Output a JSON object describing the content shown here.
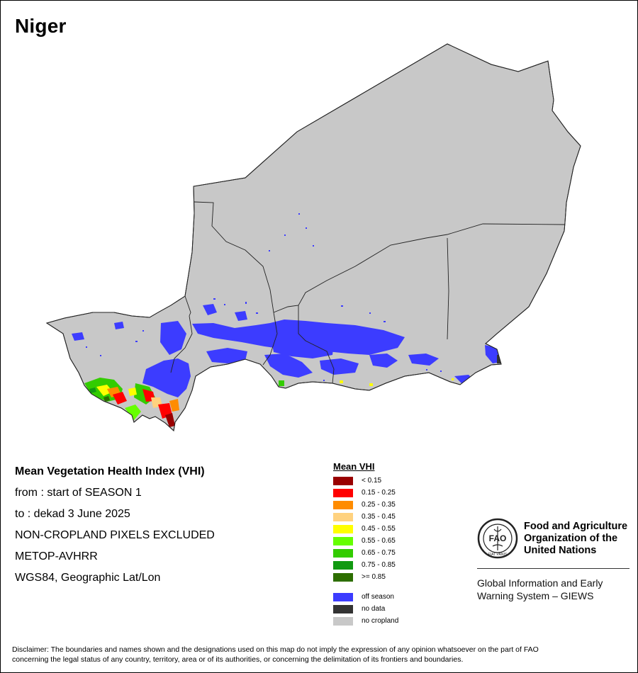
{
  "title": "Niger",
  "info": {
    "heading": "Mean Vegetation Health Index (VHI)",
    "from_line": "from    : start of SEASON 1",
    "to_line": "to       : dekad 3 June 2025",
    "exclusion": "NON-CROPLAND PIXELS EXCLUDED",
    "sensor": "METOP-AVHRR",
    "projection": "WGS84, Geographic Lat/Lon"
  },
  "legend": {
    "title": "Mean VHI",
    "classes": [
      {
        "label": "< 0.15",
        "color": "#990000"
      },
      {
        "label": "0.15 - 0.25",
        "color": "#ff0000"
      },
      {
        "label": "0.25 - 0.35",
        "color": "#ff8c00"
      },
      {
        "label": "0.35 - 0.45",
        "color": "#ffd27f"
      },
      {
        "label": "0.45 - 0.55",
        "color": "#ffff00"
      },
      {
        "label": "0.55 - 0.65",
        "color": "#66ff00"
      },
      {
        "label": "0.65 - 0.75",
        "color": "#33cc00"
      },
      {
        "label": "0.75 - 0.85",
        "color": "#119911"
      },
      {
        "label": ">= 0.85",
        "color": "#2d6e00"
      }
    ],
    "special": [
      {
        "label": "off season",
        "color": "#3c3cff"
      },
      {
        "label": "no data",
        "color": "#333333"
      },
      {
        "label": "no cropland",
        "color": "#c8c8c8"
      }
    ]
  },
  "organization": {
    "name_line1": "Food and Agriculture",
    "name_line2": "Organization of the",
    "name_line3": "United Nations",
    "emblem_text": "FIAT PANIS",
    "emblem_letters": "FAO",
    "program_line1": "Global Information and Early",
    "program_line2": "Warning System – GIEWS"
  },
  "disclaimer_line1": "Disclaimer: The boundaries and names shown and the designations used on this map do not imply the expression of any opinion whatsoever on the part of FAO",
  "disclaimer_line2": "concerning the legal status of any country, territory, area or of its authorities, or concerning the delimitation of its frontiers and boundaries.",
  "colors": {
    "country_fill": "#c8c8c8",
    "border": "#222222",
    "off_season": "#3c3cff"
  }
}
